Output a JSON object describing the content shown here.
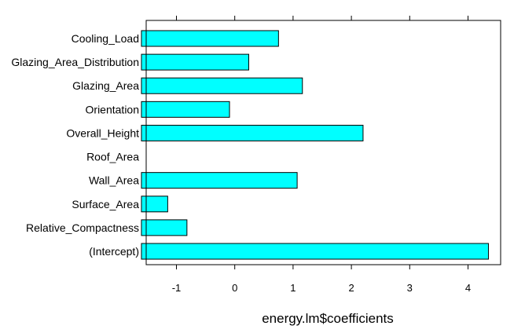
{
  "chart_data": {
    "type": "bar",
    "orientation": "horizontal",
    "categories": [
      "Cooling_Load",
      "Glazing_Area_Distribution",
      "Glazing_Area",
      "Orientation",
      "Overall_Height",
      "Roof_Area",
      "Wall_Area",
      "Surface_Area",
      "Relative_Compactness",
      "(Intercept)"
    ],
    "values": [
      0.75,
      0.24,
      1.16,
      -0.09,
      2.2,
      null,
      1.07,
      -1.15,
      -0.82,
      4.35
    ],
    "xlabel": "energy.lm$coefficients",
    "xlim": [
      -1.6,
      4.7
    ],
    "xticks": [
      -1,
      0,
      1,
      2,
      3,
      4
    ],
    "grid": false,
    "colors": {
      "bar_fill": "#00ffff",
      "bar_stroke": "#000000"
    }
  }
}
